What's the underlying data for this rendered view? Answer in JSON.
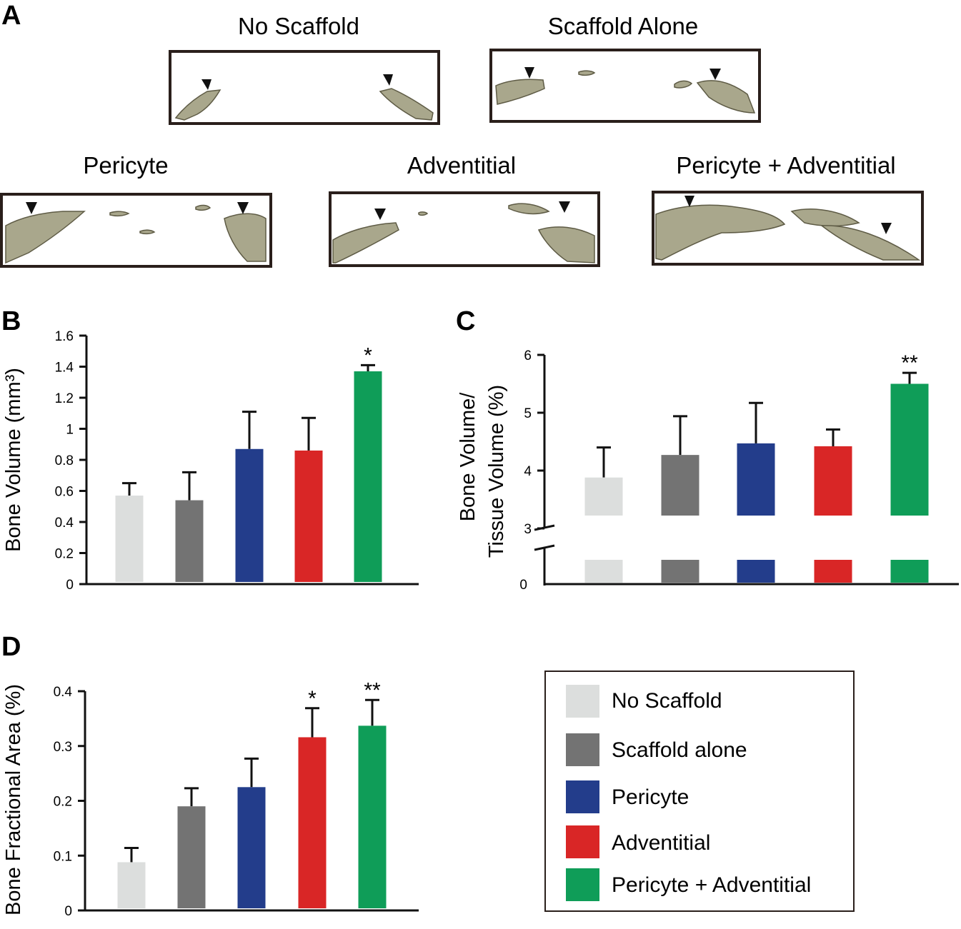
{
  "panels": {
    "a": {
      "letter": "A",
      "samples": [
        {
          "key": "no_scaffold",
          "title": "No Scaffold"
        },
        {
          "key": "scaffold_alone",
          "title": "Scaffold Alone"
        },
        {
          "key": "pericyte",
          "title": "Pericyte"
        },
        {
          "key": "adventitial",
          "title": "Adventitial"
        },
        {
          "key": "pericyte_adventitial",
          "title": "Pericyte + Adventitial"
        }
      ]
    },
    "b": {
      "letter": "B"
    },
    "c": {
      "letter": "C"
    },
    "d": {
      "letter": "D"
    }
  },
  "colors": {
    "no_scaffold": "#dcdedd",
    "scaffold_alone": "#737373",
    "pericyte": "#233d8b",
    "adventitial": "#d92626",
    "pericyte_adventitial": "#0f9d58",
    "bone_fill": "#a9a78c",
    "bone_stroke": "#5e5b45",
    "axis": "#111111"
  },
  "chart_data": [
    {
      "id": "B",
      "type": "bar",
      "ylabel": "Bone Volume (mm³)",
      "ylim": [
        0,
        1.6
      ],
      "yticks": [
        "0",
        "0.2",
        "0.4",
        "0.6",
        "0.8",
        "1",
        "1.2",
        "1.4",
        "1.6"
      ],
      "categories": [
        "No Scaffold",
        "Scaffold alone",
        "Pericyte",
        "Adventitial",
        "Pericyte + Adventitial"
      ],
      "values": [
        0.57,
        0.54,
        0.87,
        0.86,
        1.37
      ],
      "errors": [
        0.08,
        0.18,
        0.24,
        0.21,
        0.04
      ],
      "significance": [
        "",
        "",
        "",
        "",
        "*"
      ]
    },
    {
      "id": "C",
      "type": "bar",
      "ylabel_lines": [
        "Bone Volume/",
        "Tissue Volume (%)"
      ],
      "ylim": [
        3,
        6
      ],
      "axis_break": true,
      "yticks": [
        "3",
        "4",
        "5",
        "6"
      ],
      "bottom_tick": "0",
      "categories": [
        "No Scaffold",
        "Scaffold alone",
        "Pericyte",
        "Adventitial",
        "Pericyte + Adventitial"
      ],
      "values": [
        3.88,
        4.27,
        4.47,
        4.42,
        5.5
      ],
      "errors": [
        0.52,
        0.67,
        0.7,
        0.29,
        0.19
      ],
      "significance": [
        "",
        "",
        "",
        "",
        "**"
      ]
    },
    {
      "id": "D",
      "type": "bar",
      "ylabel": "Bone Fractional Area (%)",
      "ylim": [
        0,
        0.4
      ],
      "yticks": [
        "0",
        "0.1",
        "0.2",
        "0.3",
        "0.4"
      ],
      "categories": [
        "No Scaffold",
        "Scaffold alone",
        "Pericyte",
        "Adventitial",
        "Pericyte + Adventitial"
      ],
      "values": [
        0.088,
        0.19,
        0.225,
        0.316,
        0.337
      ],
      "errors": [
        0.026,
        0.033,
        0.052,
        0.053,
        0.047
      ],
      "significance": [
        "",
        "",
        "",
        "*",
        "**"
      ]
    }
  ],
  "legend": {
    "items": [
      {
        "key": "no_scaffold",
        "label": "No Scaffold"
      },
      {
        "key": "scaffold_alone",
        "label": "Scaffold alone"
      },
      {
        "key": "pericyte",
        "label": "Pericyte"
      },
      {
        "key": "adventitial",
        "label": "Adventitial"
      },
      {
        "key": "pericyte_adventitial",
        "label": "Pericyte + Adventitial"
      }
    ]
  }
}
